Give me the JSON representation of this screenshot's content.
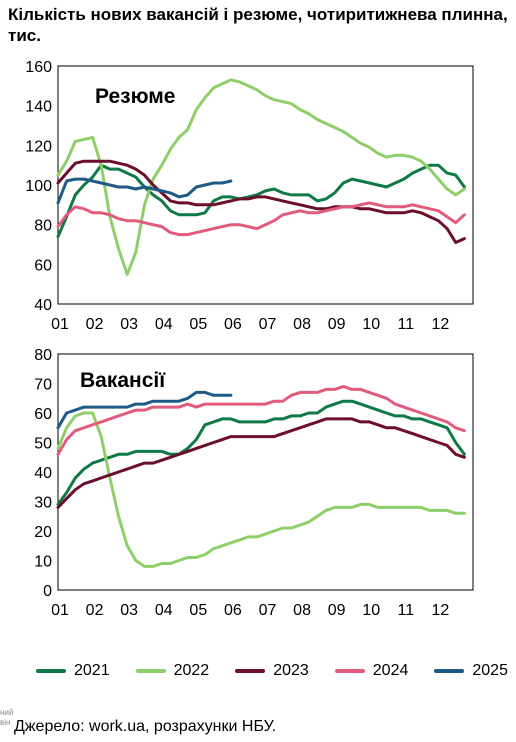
{
  "title": "Кількість нових вакансій і резюме, чотиритижнева плинна, тис.",
  "source": "Джерело: work.ua, розрахунки НБУ.",
  "side_fragment": "ний\nвін",
  "colors": {
    "2021": "#0f7a45",
    "2022": "#8fcf6a",
    "2023": "#6b0f2a",
    "2024": "#e35b7c",
    "2025": "#1d5a86"
  },
  "legend": [
    {
      "label": "2021",
      "color": "#0f7a45"
    },
    {
      "label": "2022",
      "color": "#8fcf6a"
    },
    {
      "label": "2023",
      "color": "#6b0f2a"
    },
    {
      "label": "2024",
      "color": "#e35b7c"
    },
    {
      "label": "2025",
      "color": "#1d5a86"
    }
  ],
  "chart_data": [
    {
      "type": "line",
      "label": "Резюме",
      "x_ticks": [
        "01",
        "02",
        "03",
        "04",
        "05",
        "06",
        "07",
        "08",
        "09",
        "10",
        "11",
        "12"
      ],
      "xlim": [
        1,
        13
      ],
      "ylim": [
        40,
        160
      ],
      "y_ticks": [
        40,
        60,
        80,
        100,
        120,
        140,
        160
      ],
      "grid": false,
      "series": [
        {
          "name": "2021",
          "x": [
            1,
            1.25,
            1.5,
            1.75,
            2,
            2.25,
            2.5,
            2.75,
            3,
            3.25,
            3.5,
            3.75,
            4,
            4.25,
            4.5,
            4.75,
            5,
            5.25,
            5.5,
            5.75,
            6,
            6.25,
            6.5,
            6.75,
            7,
            7.25,
            7.5,
            7.75,
            8,
            8.25,
            8.5,
            8.75,
            9,
            9.25,
            9.5,
            9.75,
            10,
            10.25,
            10.5,
            10.75,
            11,
            11.25,
            11.5,
            11.75,
            12,
            12.25,
            12.5,
            12.75
          ],
          "y": [
            74,
            84,
            95,
            100,
            104,
            110,
            108,
            108,
            106,
            104,
            99,
            95,
            92,
            87,
            85,
            85,
            85,
            86,
            92,
            94,
            94,
            93,
            94,
            95,
            97,
            98,
            96,
            95,
            95,
            95,
            92,
            93,
            96,
            101,
            103,
            102,
            101,
            100,
            99,
            101,
            103,
            106,
            108,
            110,
            110,
            106,
            105,
            99
          ]
        },
        {
          "name": "2022",
          "x": [
            1,
            1.25,
            1.5,
            1.75,
            2,
            2.25,
            2.5,
            2.75,
            3,
            3.25,
            3.5,
            3.75,
            4,
            4.25,
            4.5,
            4.75,
            5,
            5.25,
            5.5,
            5.75,
            6,
            6.25,
            6.5,
            6.75,
            7,
            7.25,
            7.5,
            7.75,
            8,
            8.25,
            8.5,
            8.75,
            9,
            9.25,
            9.5,
            9.75,
            10,
            10.25,
            10.5,
            10.75,
            11,
            11.25,
            11.5,
            11.75,
            12,
            12.25,
            12.5,
            12.75
          ],
          "y": [
            105,
            112,
            122,
            123,
            124,
            110,
            84,
            68,
            55,
            66,
            90,
            103,
            110,
            118,
            124,
            128,
            138,
            144,
            149,
            151,
            153,
            152,
            150,
            148,
            145,
            143,
            142,
            141,
            138,
            136,
            133,
            131,
            129,
            127,
            124,
            121,
            119,
            116,
            114,
            115,
            115,
            114,
            112,
            108,
            103,
            98,
            95,
            98
          ]
        },
        {
          "name": "2023",
          "x": [
            1,
            1.25,
            1.5,
            1.75,
            2,
            2.25,
            2.5,
            2.75,
            3,
            3.25,
            3.5,
            3.75,
            4,
            4.25,
            4.5,
            4.75,
            5,
            5.25,
            5.5,
            5.75,
            6,
            6.25,
            6.5,
            6.75,
            7,
            7.25,
            7.5,
            7.75,
            8,
            8.25,
            8.5,
            8.75,
            9,
            9.25,
            9.5,
            9.75,
            10,
            10.25,
            10.5,
            10.75,
            11,
            11.25,
            11.5,
            11.75,
            12,
            12.25,
            12.5,
            12.75
          ],
          "y": [
            101,
            106,
            111,
            112,
            112,
            112,
            112,
            111,
            110,
            108,
            105,
            100,
            96,
            92,
            91,
            91,
            90,
            90,
            90,
            91,
            92,
            93,
            93,
            94,
            94,
            93,
            92,
            91,
            90,
            89,
            88,
            88,
            89,
            89,
            89,
            88,
            88,
            87,
            86,
            86,
            86,
            87,
            86,
            84,
            82,
            78,
            71,
            73
          ]
        },
        {
          "name": "2024",
          "x": [
            1,
            1.25,
            1.5,
            1.75,
            2,
            2.25,
            2.5,
            2.75,
            3,
            3.25,
            3.5,
            3.75,
            4,
            4.25,
            4.5,
            4.75,
            5,
            5.25,
            5.5,
            5.75,
            6,
            6.25,
            6.5,
            6.75,
            7,
            7.25,
            7.5,
            7.75,
            8,
            8.25,
            8.5,
            8.75,
            9,
            9.25,
            9.5,
            9.75,
            10,
            10.25,
            10.5,
            10.75,
            11,
            11.25,
            11.5,
            11.75,
            12,
            12.25,
            12.5,
            12.75
          ],
          "y": [
            79,
            85,
            89,
            88,
            86,
            86,
            85,
            83,
            82,
            82,
            81,
            80,
            79,
            76,
            75,
            75,
            76,
            77,
            78,
            79,
            80,
            80,
            79,
            78,
            80,
            82,
            85,
            86,
            87,
            86,
            86,
            87,
            88,
            89,
            89,
            90,
            91,
            90,
            89,
            89,
            89,
            90,
            89,
            88,
            87,
            84,
            81,
            85
          ]
        },
        {
          "name": "2025",
          "x": [
            1,
            1.25,
            1.5,
            1.75,
            2,
            2.25,
            2.5,
            2.75,
            3,
            3.25,
            3.5,
            3.75,
            4,
            4.25,
            4.5,
            4.75,
            5,
            5.25,
            5.5,
            5.75,
            6
          ],
          "y": [
            91,
            102,
            103,
            103,
            102,
            101,
            100,
            99,
            99,
            98,
            99,
            98,
            97,
            96,
            94,
            95,
            99,
            100,
            101,
            101,
            102
          ]
        }
      ]
    },
    {
      "type": "line",
      "label": "Вакансії",
      "x_ticks": [
        "01",
        "02",
        "03",
        "04",
        "05",
        "06",
        "07",
        "08",
        "09",
        "10",
        "11",
        "12"
      ],
      "xlim": [
        1,
        13
      ],
      "ylim": [
        0,
        80
      ],
      "y_ticks": [
        0,
        10,
        20,
        30,
        40,
        50,
        60,
        70,
        80
      ],
      "grid": false,
      "series": [
        {
          "name": "2021",
          "x": [
            1,
            1.25,
            1.5,
            1.75,
            2,
            2.25,
            2.5,
            2.75,
            3,
            3.25,
            3.5,
            3.75,
            4,
            4.25,
            4.5,
            4.75,
            5,
            5.25,
            5.5,
            5.75,
            6,
            6.25,
            6.5,
            6.75,
            7,
            7.25,
            7.5,
            7.75,
            8,
            8.25,
            8.5,
            8.75,
            9,
            9.25,
            9.5,
            9.75,
            10,
            10.25,
            10.5,
            10.75,
            11,
            11.25,
            11.5,
            11.75,
            12,
            12.25,
            12.5,
            12.75
          ],
          "y": [
            29,
            33,
            38,
            41,
            43,
            44,
            45,
            46,
            46,
            47,
            47,
            47,
            47,
            46,
            46,
            48,
            51,
            56,
            57,
            58,
            58,
            57,
            57,
            57,
            57,
            58,
            58,
            59,
            59,
            60,
            60,
            62,
            63,
            64,
            64,
            63,
            62,
            61,
            60,
            59,
            59,
            58,
            58,
            57,
            56,
            55,
            50,
            46
          ]
        },
        {
          "name": "2022",
          "x": [
            1,
            1.25,
            1.5,
            1.75,
            2,
            2.25,
            2.5,
            2.75,
            3,
            3.25,
            3.5,
            3.75,
            4,
            4.25,
            4.5,
            4.75,
            5,
            5.25,
            5.5,
            5.75,
            6,
            6.25,
            6.5,
            6.75,
            7,
            7.25,
            7.5,
            7.75,
            8,
            8.25,
            8.5,
            8.75,
            9,
            9.25,
            9.5,
            9.75,
            10,
            10.25,
            10.5,
            10.75,
            11,
            11.25,
            11.5,
            11.75,
            12,
            12.25,
            12.5,
            12.75
          ],
          "y": [
            48,
            55,
            59,
            60,
            60,
            52,
            38,
            25,
            15,
            10,
            8,
            8,
            9,
            9,
            10,
            11,
            11,
            12,
            14,
            15,
            16,
            17,
            18,
            18,
            19,
            20,
            21,
            21,
            22,
            23,
            25,
            27,
            28,
            28,
            28,
            29,
            29,
            28,
            28,
            28,
            28,
            28,
            28,
            27,
            27,
            27,
            26,
            26
          ]
        },
        {
          "name": "2023",
          "x": [
            1,
            1.25,
            1.5,
            1.75,
            2,
            2.25,
            2.5,
            2.75,
            3,
            3.25,
            3.5,
            3.75,
            4,
            4.25,
            4.5,
            4.75,
            5,
            5.25,
            5.5,
            5.75,
            6,
            6.25,
            6.5,
            6.75,
            7,
            7.25,
            7.5,
            7.75,
            8,
            8.25,
            8.5,
            8.75,
            9,
            9.25,
            9.5,
            9.75,
            10,
            10.25,
            10.5,
            10.75,
            11,
            11.25,
            11.5,
            11.75,
            12,
            12.25,
            12.5,
            12.75
          ],
          "y": [
            28,
            31,
            34,
            36,
            37,
            38,
            39,
            40,
            41,
            42,
            43,
            43,
            44,
            45,
            46,
            47,
            48,
            49,
            50,
            51,
            52,
            52,
            52,
            52,
            52,
            52,
            53,
            54,
            55,
            56,
            57,
            58,
            58,
            58,
            58,
            57,
            57,
            56,
            55,
            55,
            54,
            53,
            52,
            51,
            50,
            49,
            46,
            45
          ]
        },
        {
          "name": "2024",
          "x": [
            1,
            1.25,
            1.5,
            1.75,
            2,
            2.25,
            2.5,
            2.75,
            3,
            3.25,
            3.5,
            3.75,
            4,
            4.25,
            4.5,
            4.75,
            5,
            5.25,
            5.5,
            5.75,
            6,
            6.25,
            6.5,
            6.75,
            7,
            7.25,
            7.5,
            7.75,
            8,
            8.25,
            8.5,
            8.75,
            9,
            9.25,
            9.5,
            9.75,
            10,
            10.25,
            10.5,
            10.75,
            11,
            11.25,
            11.5,
            11.75,
            12,
            12.25,
            12.5,
            12.75
          ],
          "y": [
            46,
            51,
            54,
            55,
            56,
            57,
            58,
            59,
            60,
            61,
            61,
            62,
            62,
            62,
            62,
            63,
            62,
            63,
            63,
            63,
            63,
            63,
            63,
            63,
            63,
            64,
            64,
            66,
            67,
            67,
            67,
            68,
            68,
            69,
            68,
            68,
            67,
            66,
            65,
            63,
            62,
            61,
            60,
            59,
            58,
            57,
            55,
            54
          ]
        },
        {
          "name": "2025",
          "x": [
            1,
            1.25,
            1.5,
            1.75,
            2,
            2.25,
            2.5,
            2.75,
            3,
            3.25,
            3.5,
            3.75,
            4,
            4.25,
            4.5,
            4.75,
            5,
            5.25,
            5.5,
            5.75,
            6
          ],
          "y": [
            55,
            60,
            61,
            62,
            62,
            62,
            62,
            62,
            62,
            63,
            63,
            64,
            64,
            64,
            64,
            65,
            67,
            67,
            66,
            66,
            66
          ]
        }
      ]
    }
  ]
}
